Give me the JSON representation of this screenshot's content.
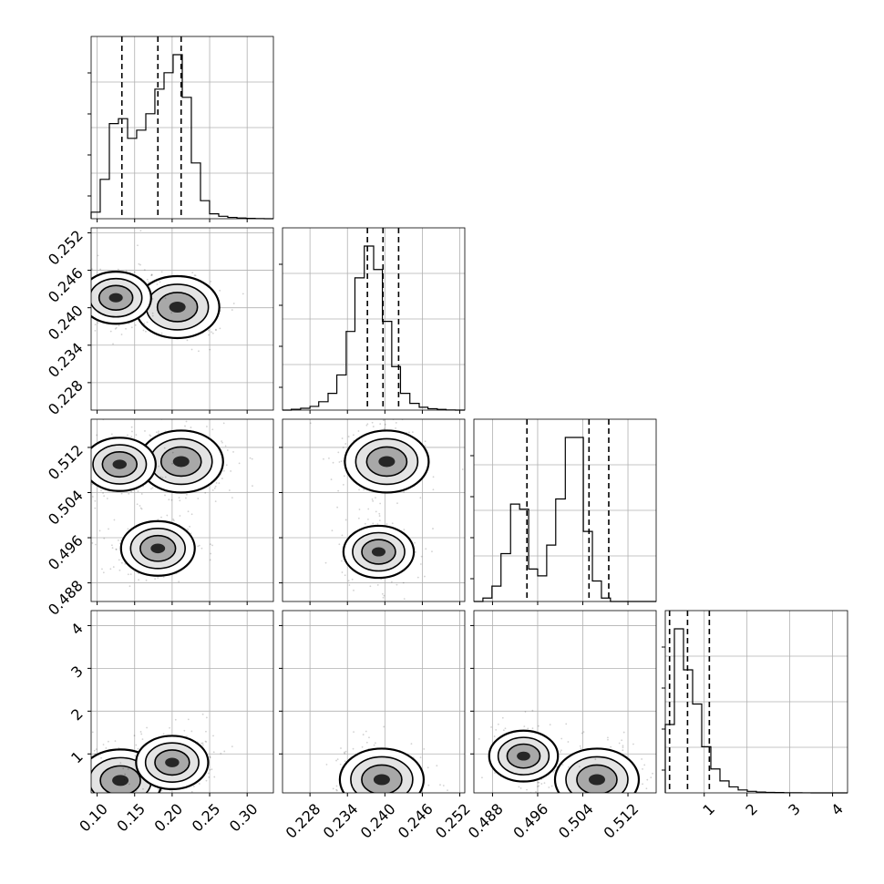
{
  "chart_data": {
    "type": "corner",
    "colors": {
      "mark": "#000000",
      "grid": "#b0b0b0",
      "background": "#ffffff"
    },
    "grid": true,
    "parameters": [
      {
        "range": [
          0.092,
          0.335
        ],
        "ticks": [
          "0.10",
          "0.15",
          "0.20",
          "0.25",
          "0.30"
        ],
        "tick_values": [
          0.1,
          0.15,
          0.2,
          0.25,
          0.3
        ]
      },
      {
        "range": [
          0.2236,
          0.2528
        ],
        "ticks": [
          "0.228",
          "0.234",
          "0.240",
          "0.246",
          "0.252"
        ],
        "tick_values": [
          0.228,
          0.234,
          0.24,
          0.246,
          0.252
        ]
      },
      {
        "range": [
          0.4847,
          0.517
        ],
        "ticks": [
          "0.488",
          "0.496",
          "0.504",
          "0.512"
        ],
        "tick_values": [
          0.488,
          0.496,
          0.504,
          0.512
        ]
      },
      {
        "range": [
          0.09,
          4.35
        ],
        "ticks": [
          "1",
          "2",
          "3",
          "4"
        ],
        "tick_values": [
          1,
          2,
          3,
          4
        ]
      }
    ],
    "histograms": [
      {
        "param": 0,
        "type": "step",
        "quantiles": [
          0.133,
          0.181,
          0.212
        ],
        "bins": [
          0.092,
          0.1041,
          0.1163,
          0.1284,
          0.1406,
          0.1527,
          0.1649,
          0.177,
          0.1892,
          0.2013,
          0.2135,
          0.2256,
          0.2378,
          0.2499,
          0.2621,
          0.2742,
          0.2864,
          0.2985,
          0.3107,
          0.3228,
          0.335
        ],
        "counts": [
          0.04,
          0.24,
          0.58,
          0.61,
          0.49,
          0.54,
          0.64,
          0.79,
          0.89,
          1.0,
          0.74,
          0.34,
          0.11,
          0.03,
          0.015,
          0.008,
          0.004,
          0.002,
          0.001,
          0.0
        ]
      },
      {
        "param": 1,
        "type": "step",
        "quantiles": [
          0.2372,
          0.2397,
          0.2422
        ],
        "bins": [
          0.2236,
          0.225,
          0.2265,
          0.228,
          0.2294,
          0.2309,
          0.2323,
          0.2338,
          0.2352,
          0.2367,
          0.2382,
          0.2396,
          0.2411,
          0.2425,
          0.244,
          0.2455,
          0.2469,
          0.2484,
          0.2498,
          0.2513,
          0.2528
        ],
        "counts": [
          0.0,
          0.005,
          0.011,
          0.022,
          0.05,
          0.1,
          0.21,
          0.47,
          0.79,
          0.98,
          0.84,
          0.53,
          0.26,
          0.1,
          0.04,
          0.017,
          0.008,
          0.004,
          0.001,
          0.0
        ]
      },
      {
        "param": 2,
        "type": "step",
        "quantiles": [
          0.4941,
          0.5051,
          0.5086
        ],
        "bins": [
          0.4847,
          0.4863,
          0.4879,
          0.4895,
          0.4912,
          0.4928,
          0.4944,
          0.496,
          0.4976,
          0.4992,
          0.5009,
          0.5025,
          0.5041,
          0.5057,
          0.5073,
          0.5089,
          0.5106,
          0.5122,
          0.5138,
          0.5154,
          0.517
        ],
        "counts": [
          0.0,
          0.02,
          0.09,
          0.28,
          0.57,
          0.54,
          0.19,
          0.15,
          0.33,
          0.6,
          0.96,
          0.96,
          0.41,
          0.12,
          0.02,
          0.0,
          0.0,
          0.0,
          0.0,
          0.0
        ]
      },
      {
        "param": 3,
        "type": "step",
        "quantiles": [
          0.19,
          0.61,
          1.12
        ],
        "bins": [
          0.09,
          0.303,
          0.516,
          0.729,
          0.942,
          1.155,
          1.368,
          1.581,
          1.794,
          2.007,
          2.22,
          2.433,
          2.646,
          2.859,
          3.072,
          3.285,
          3.498,
          3.711,
          3.924,
          4.137,
          4.35
        ],
        "counts": [
          0.4,
          0.96,
          0.72,
          0.52,
          0.27,
          0.14,
          0.07,
          0.035,
          0.017,
          0.009,
          0.005,
          0.003,
          0.002,
          0.001,
          0.0005,
          0.0003,
          0.0002,
          0.0001,
          0.0,
          0.0
        ]
      }
    ],
    "pairs": [
      {
        "x": 0,
        "y": 1,
        "peaks": [
          {
            "x": 0.207,
            "y": 0.2401,
            "value": 1.0
          },
          {
            "x": 0.125,
            "y": 0.2416,
            "value": 0.6
          }
        ]
      },
      {
        "x": 0,
        "y": 2,
        "peaks": [
          {
            "x": 0.212,
            "y": 0.5095,
            "value": 1.0
          },
          {
            "x": 0.13,
            "y": 0.509,
            "value": 0.65
          },
          {
            "x": 0.181,
            "y": 0.4941,
            "value": 0.7
          }
        ]
      },
      {
        "x": 1,
        "y": 2,
        "peaks": [
          {
            "x": 0.2403,
            "y": 0.5095,
            "value": 1.0
          },
          {
            "x": 0.239,
            "y": 0.4935,
            "value": 0.6
          }
        ]
      },
      {
        "x": 0,
        "y": 3,
        "peaks": [
          {
            "x": 0.131,
            "y": 0.38,
            "value": 1.0
          },
          {
            "x": 0.2,
            "y": 0.8,
            "value": 0.65
          }
        ]
      },
      {
        "x": 1,
        "y": 3,
        "peaks": [
          {
            "x": 0.2395,
            "y": 0.4,
            "value": 1.0
          }
        ]
      },
      {
        "x": 2,
        "y": 3,
        "peaks": [
          {
            "x": 0.5065,
            "y": 0.4,
            "value": 1.0
          },
          {
            "x": 0.4935,
            "y": 0.95,
            "value": 0.55
          }
        ]
      }
    ]
  }
}
